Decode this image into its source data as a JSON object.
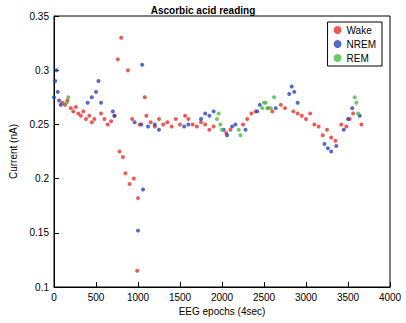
{
  "chart_data": {
    "type": "scatter",
    "title": "Ascorbic acid reading",
    "x_label": "EEG epochs (4sec)",
    "y_label": "Current (nA)",
    "xlim": [
      0,
      4000
    ],
    "xticks": [
      0,
      500,
      1000,
      1500,
      2000,
      2500,
      3000,
      3500,
      4000
    ],
    "ylim": [
      0.1,
      0.35
    ],
    "yticks": [
      0.1,
      0.15,
      0.2,
      0.25,
      0.3,
      0.35
    ],
    "grid": false,
    "legend": "upper right",
    "marker": "circle",
    "series": [
      {
        "name": "Wake",
        "color": "#e8312a",
        "x": [
          100,
          130,
          160,
          200,
          230,
          260,
          290,
          320,
          350,
          380,
          420,
          450,
          480,
          560,
          600,
          640,
          680,
          720,
          760,
          780,
          800,
          820,
          850,
          880,
          900,
          930,
          950,
          990,
          1000,
          1020,
          1080,
          1100,
          1150,
          1200,
          1250,
          1300,
          1350,
          1400,
          1450,
          1500,
          1560,
          1600,
          1650,
          1700,
          1750,
          1800,
          1850,
          1900,
          2050,
          2100,
          2250,
          2300,
          2350,
          2400,
          2550,
          2600,
          2700,
          2750,
          2850,
          2900,
          2950,
          3000,
          3050,
          3100,
          3150,
          3200,
          3250,
          3300,
          3350,
          3420,
          3480,
          3520,
          3560,
          3660
        ],
        "values": [
          0.27,
          0.268,
          0.272,
          0.265,
          0.262,
          0.266,
          0.26,
          0.258,
          0.262,
          0.255,
          0.258,
          0.252,
          0.255,
          0.26,
          0.255,
          0.25,
          0.253,
          0.258,
          0.31,
          0.225,
          0.33,
          0.22,
          0.205,
          0.3,
          0.195,
          0.255,
          0.2,
          0.115,
          0.182,
          0.25,
          0.275,
          0.258,
          0.252,
          0.248,
          0.255,
          0.25,
          0.252,
          0.248,
          0.255,
          0.25,
          0.258,
          0.255,
          0.25,
          0.248,
          0.252,
          0.25,
          0.245,
          0.248,
          0.242,
          0.245,
          0.25,
          0.255,
          0.26,
          0.262,
          0.265,
          0.262,
          0.268,
          0.265,
          0.262,
          0.26,
          0.258,
          0.255,
          0.26,
          0.25,
          0.248,
          0.24,
          0.245,
          0.238,
          0.235,
          0.25,
          0.248,
          0.255,
          0.26,
          0.25
        ]
      },
      {
        "name": "NREM",
        "color": "#2a44b8",
        "x": [
          0,
          15,
          30,
          45,
          60,
          80,
          400,
          450,
          500,
          530,
          560,
          700,
          720,
          960,
          1000,
          1040,
          1050,
          1060,
          1120,
          1200,
          1250,
          1550,
          1600,
          1750,
          1800,
          1850,
          1900,
          2020,
          2060,
          2120,
          2160,
          2280,
          2420,
          2450,
          2640,
          2800,
          2830,
          2860,
          2900,
          3220,
          3260,
          3300,
          3360,
          3450,
          3500,
          3550,
          3640
        ],
        "values": [
          0.275,
          0.29,
          0.3,
          0.28,
          0.272,
          0.268,
          0.27,
          0.275,
          0.28,
          0.29,
          0.27,
          0.262,
          0.258,
          0.252,
          0.152,
          0.25,
          0.305,
          0.19,
          0.248,
          0.25,
          0.245,
          0.248,
          0.25,
          0.255,
          0.26,
          0.258,
          0.262,
          0.245,
          0.24,
          0.248,
          0.25,
          0.245,
          0.262,
          0.268,
          0.265,
          0.278,
          0.285,
          0.28,
          0.27,
          0.232,
          0.228,
          0.225,
          0.23,
          0.245,
          0.255,
          0.265,
          0.258
        ]
      },
      {
        "name": "REM",
        "color": "#44bb44",
        "x": [
          150,
          170,
          1940,
          1960,
          1980,
          2000,
          2200,
          2220,
          2480,
          2500,
          2520,
          2540,
          2580,
          2620,
          3580,
          3600,
          3620
        ],
        "values": [
          0.27,
          0.275,
          0.255,
          0.26,
          0.25,
          0.245,
          0.245,
          0.24,
          0.265,
          0.27,
          0.27,
          0.265,
          0.265,
          0.275,
          0.275,
          0.27,
          0.26
        ]
      }
    ]
  }
}
